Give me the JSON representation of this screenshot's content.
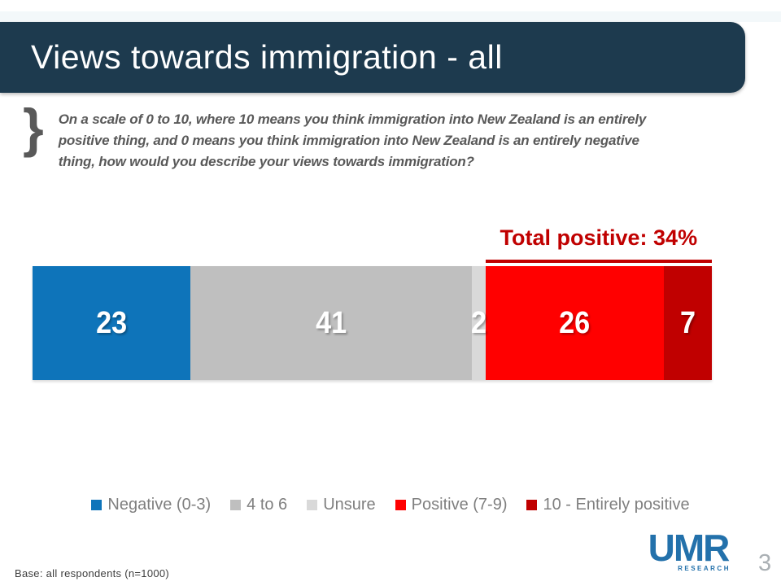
{
  "slide": {
    "title": "Views towards immigration - all",
    "bracket_glyph": "}",
    "question_lines": [
      "On a scale of 0 to 10, where 10 means you think immigration into New Zealand is an entirely",
      "positive thing, and 0 means you think immigration into New Zealand is an entirely negative",
      "thing, how would you describe your views towards immigration?"
    ],
    "base_note": "Base: all respondents (n=1000)",
    "page_number": "3",
    "logo_text": "UMR",
    "logo_subtext": "RESEARCH"
  },
  "colors": {
    "banner": "#1d3a4e",
    "title_text": "#ffffff",
    "question_text": "#595959",
    "annotation_red": "#c00000",
    "legend_text": "#7f7f7f",
    "logo_blue": "#2371ab",
    "page_number_gray": "#aab0b4"
  },
  "chart_data": {
    "type": "bar",
    "stacked": true,
    "orientation": "horizontal",
    "value_labels_shown": true,
    "legend_position": "bottom",
    "series": [
      {
        "name": "Negative (0-3)",
        "values": [
          23
        ],
        "color": "#0e74ba"
      },
      {
        "name": "4 to 6",
        "values": [
          41
        ],
        "color": "#bfbfbf"
      },
      {
        "name": "Unsure",
        "values": [
          2
        ],
        "color": "#d9d9d9"
      },
      {
        "name": "Positive (7-9)",
        "values": [
          26
        ],
        "color": "#ff0000"
      },
      {
        "name": "10 - Entirely positive",
        "values": [
          7
        ],
        "color": "#c00000"
      }
    ],
    "annotation": {
      "label": "Total positive: 34%",
      "from_index": 3,
      "to_index": 4,
      "color": "#c00000"
    }
  }
}
